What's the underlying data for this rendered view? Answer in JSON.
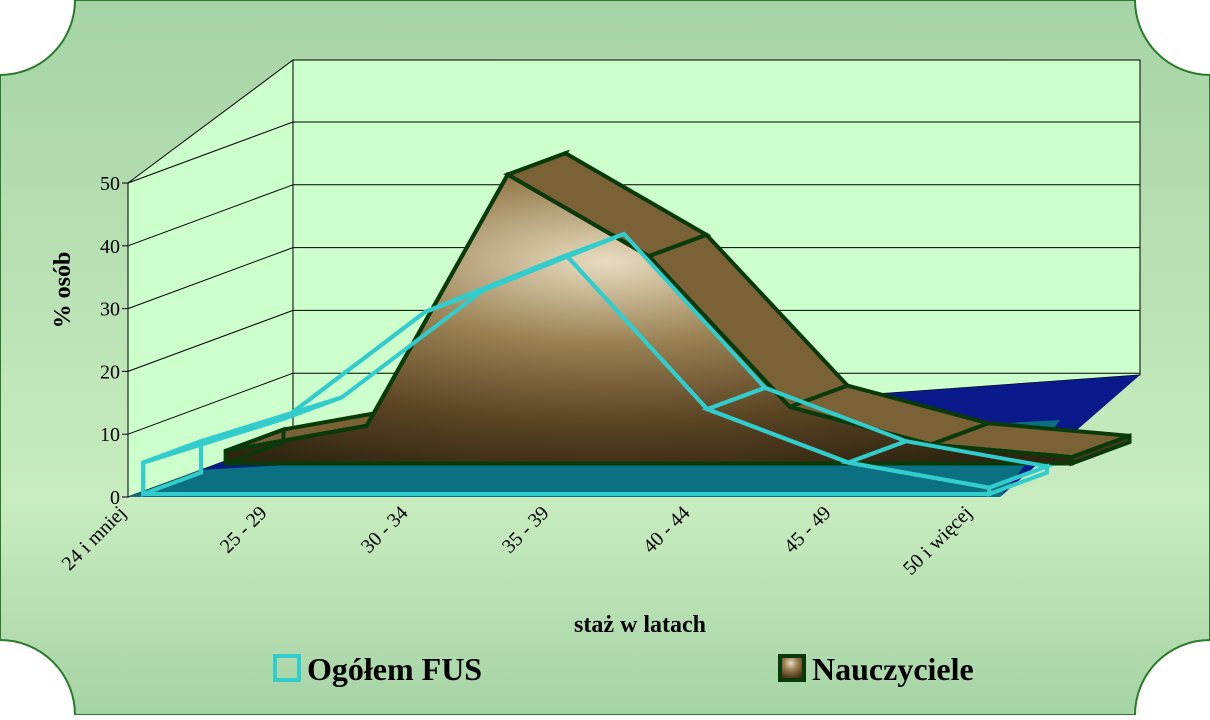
{
  "chart_data": {
    "type": "area3d",
    "y_label": "% osób",
    "x_label": "staż w latach",
    "categories": [
      "24 i mniej",
      "25 - 29",
      "30 - 34",
      "35 - 39",
      "40 - 44",
      "45 - 49",
      "50 i więcej"
    ],
    "series": [
      {
        "name": "Ogółem FUS",
        "color": "#33cccc",
        "values": [
          5,
          12,
          29,
          38,
          13.5,
          5,
          1
        ]
      },
      {
        "name": "Nauczyciele",
        "color": "#8a6a3a",
        "values": [
          2,
          6,
          46,
          33,
          9,
          3,
          1
        ]
      }
    ],
    "ylim": [
      0,
      50
    ],
    "yticks": [
      0,
      10,
      20,
      30,
      40,
      50
    ],
    "grid": true,
    "legend": "bottom"
  }
}
